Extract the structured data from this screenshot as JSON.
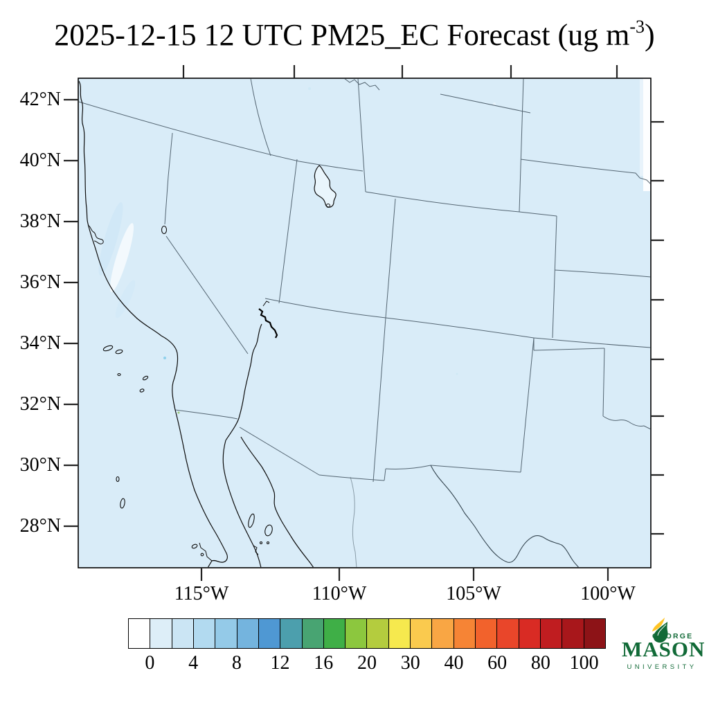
{
  "title": {
    "text": "2025-12-15 12 UTC PM25_EC Forecast (ug m",
    "superscript": "-3",
    "suffix": ")"
  },
  "axes": {
    "lat_labels": [
      "42°N",
      "40°N",
      "38°N",
      "36°N",
      "34°N",
      "32°N",
      "30°N",
      "28°N"
    ],
    "lon_labels": [
      "115°W",
      "110°W",
      "105°W",
      "100°W"
    ]
  },
  "colorbar": {
    "tick_labels": [
      "0",
      "4",
      "8",
      "12",
      "16",
      "20",
      "30",
      "40",
      "60",
      "80",
      "100"
    ],
    "colors": [
      "#FFFFFF",
      "#DDEEF8",
      "#CBE5F4",
      "#B2DAF0",
      "#94CAE8",
      "#74B4DE",
      "#4F98D3",
      "#4C9FAD",
      "#48A472",
      "#3FAF47",
      "#8CC73E",
      "#B4CC3E",
      "#F6E94E",
      "#FACA4E",
      "#F9A644",
      "#F68435",
      "#F2622C",
      "#E9462A",
      "#D92B24",
      "#C01D20",
      "#A8171B",
      "#8D1317"
    ]
  },
  "logo": {
    "top": "GEORGE",
    "name": "MASON",
    "bottom": "UNIVERSITY"
  },
  "colors": {
    "map_fill": "#D9ECF8",
    "state_line": "#3B4C59",
    "coast_line": "#0B0B0B",
    "logo_green": "#116A37",
    "logo_gold": "#FFC425"
  }
}
